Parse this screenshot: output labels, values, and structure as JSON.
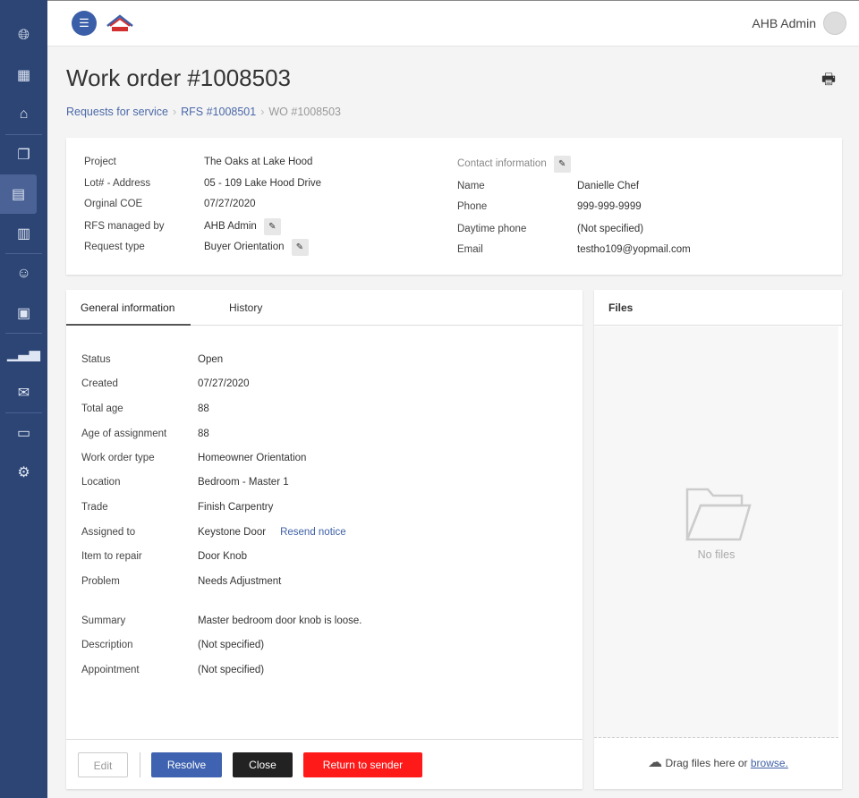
{
  "sidebar": {
    "icons": [
      "globe-icon",
      "calculator-icon",
      "home-icon",
      "documents-icon",
      "document-icon",
      "clipboard-icon",
      "user-icon",
      "dashboard-icon",
      "chart-icon",
      "mail-icon",
      "video-icon",
      "settings-icon"
    ]
  },
  "header": {
    "user": "AHB Admin"
  },
  "page": {
    "title": "Work order #1008503"
  },
  "breadcrumb": [
    "Requests for service",
    "RFS #1008501",
    "WO #1008503"
  ],
  "summary": {
    "left": [
      {
        "k": "Project",
        "v": "The Oaks at Lake Hood"
      },
      {
        "k": "Lot# - Address",
        "v": "05 - 109 Lake Hood Drive"
      },
      {
        "k": "Orginal COE",
        "v": "07/27/2020"
      },
      {
        "k": "RFS managed by",
        "v": "AHB Admin"
      },
      {
        "k": "Request type",
        "v": "Buyer Orientation"
      }
    ],
    "contact_title": "Contact information",
    "right": [
      {
        "k": "Name",
        "v": "Danielle Chef"
      },
      {
        "k": "Phone",
        "v": "999-999-9999"
      },
      {
        "k": "Daytime phone",
        "v": "(Not specified)"
      },
      {
        "k": "Email",
        "v": "testho109@yopmail.com"
      }
    ]
  },
  "tabs": [
    "General information",
    "History"
  ],
  "details": [
    {
      "k": "Status",
      "v": "Open"
    },
    {
      "k": "Created",
      "v": "07/27/2020"
    },
    {
      "k": "Total age",
      "v": "88"
    },
    {
      "k": "Age of assignment",
      "v": "88"
    },
    {
      "k": "Work order type",
      "v": "Homeowner Orientation"
    },
    {
      "k": "Location",
      "v": "Bedroom - Master 1"
    },
    {
      "k": "Trade",
      "v": "Finish Carpentry"
    },
    {
      "k": "Assigned to",
      "v": "Keystone Door"
    },
    {
      "k": "Item to repair",
      "v": "Door Knob"
    },
    {
      "k": "Problem",
      "v": "Needs Adjustment"
    },
    {
      "k": "Summary",
      "v": "Master bedroom door knob is loose."
    },
    {
      "k": "Description",
      "v": "(Not specified)"
    },
    {
      "k": "Appointment",
      "v": "(Not specified)"
    }
  ],
  "resend_label": "Resend notice",
  "buttons": {
    "edit": "Edit",
    "resolve": "Resolve",
    "close": "Close",
    "return": "Return to sender"
  },
  "files": {
    "title": "Files",
    "empty": "No files",
    "drag": "Drag files here or",
    "browse": "browse."
  },
  "colors": {
    "sidebar": "#2c4575",
    "resolve": "#3f63b0",
    "close": "#222222",
    "return": "#ff1a1a",
    "alert": "#e53935"
  }
}
